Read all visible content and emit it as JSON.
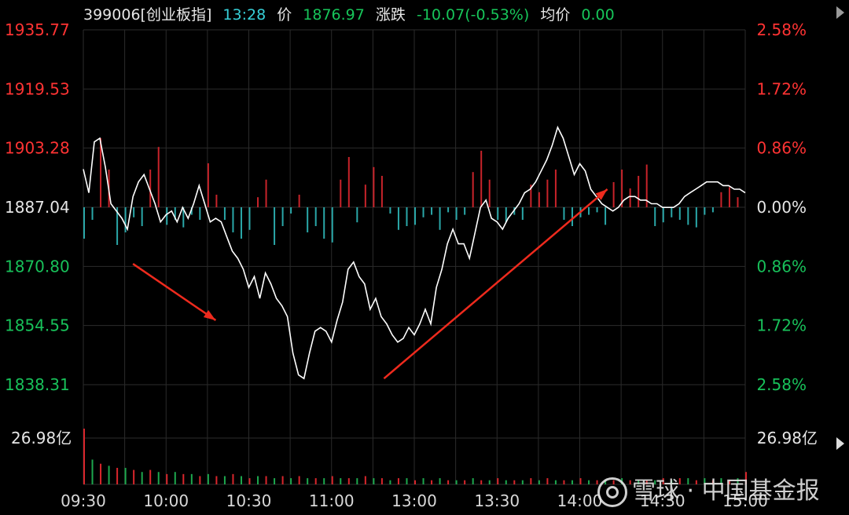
{
  "header": {
    "code_name": "399006[创业板指]",
    "time": "13:28",
    "price_label": "价",
    "price": "1876.97",
    "change_label": "涨跌",
    "change": "-10.07(-0.53%)",
    "avg_label": "均价",
    "avg": "0.00"
  },
  "watermark": {
    "text": "雪球 · 中国基金报",
    "logo_icon": "snowball-logo-icon"
  },
  "colors": {
    "up": "#ff3333",
    "down": "#18c15a",
    "ref": "#e6e6e6",
    "bar_up": "#c8232a",
    "bar_down": "#2aa7a8",
    "vol_up": "#d9262c",
    "vol_down": "#1da84e",
    "grid": "#2b2b2b",
    "arrow": "#ee2a1d",
    "price_line": "#ffffff"
  },
  "chart_data": {
    "type": "line",
    "title": "399006[创业板指]",
    "base_price": 1887.04,
    "ylim": [
      1838.31,
      1935.77
    ],
    "left_ticks": [
      "1935.77",
      "1919.53",
      "1903.28",
      "1887.04",
      "1870.80",
      "1854.55",
      "1838.31"
    ],
    "right_ticks": [
      "2.58%",
      "1.72%",
      "0.86%",
      "0.00%",
      "0.86%",
      "1.72%",
      "2.58%"
    ],
    "x_ticks": [
      "09:30",
      "10:00",
      "10:30",
      "11:00",
      "13:00",
      "13:30",
      "14:00",
      "14:30",
      "15:00"
    ],
    "volume_label_left": "26.98亿",
    "volume_label_right": "26.98亿",
    "grid": true,
    "price_series": {
      "x_minutes": [
        0,
        2,
        4,
        6,
        8,
        10,
        12,
        14,
        16,
        18,
        20,
        22,
        24,
        26,
        28,
        30,
        32,
        34,
        36,
        38,
        40,
        42,
        44,
        46,
        48,
        50,
        52,
        54,
        56,
        58,
        60,
        62,
        64,
        66,
        68,
        70,
        72,
        74,
        76,
        78,
        80,
        82,
        84,
        86,
        88,
        90,
        92,
        94,
        96,
        98,
        100,
        102,
        104,
        106,
        108,
        110,
        112,
        114,
        116,
        118,
        120,
        122,
        124,
        126,
        128,
        130,
        132,
        134,
        136,
        138,
        140,
        142,
        144,
        146,
        148,
        150,
        152,
        154,
        156,
        158,
        160,
        162,
        164,
        166,
        168,
        170,
        172,
        174,
        176,
        178,
        180,
        182,
        184,
        186,
        188,
        190,
        192,
        194,
        196,
        198,
        200,
        202,
        204,
        206,
        208,
        210,
        212,
        214,
        216,
        218,
        220,
        222,
        224,
        226,
        228,
        230,
        232,
        234,
        236,
        238,
        240
      ],
      "values": [
        1897.5,
        1891,
        1905,
        1906,
        1898,
        1888,
        1886,
        1884,
        1881,
        1890,
        1894,
        1896,
        1892,
        1888,
        1883,
        1885,
        1886,
        1883,
        1887,
        1884,
        1888,
        1893,
        1888,
        1883,
        1884,
        1883,
        1879,
        1875,
        1873,
        1870,
        1865,
        1868,
        1862,
        1869,
        1866,
        1862,
        1860,
        1857,
        1847,
        1841,
        1840,
        1847,
        1853,
        1854,
        1853,
        1850,
        1856,
        1861,
        1870,
        1872,
        1868,
        1866,
        1859,
        1862,
        1857,
        1855,
        1852,
        1850,
        1851,
        1854,
        1852,
        1855,
        1859,
        1855,
        1865,
        1870,
        1877,
        1881,
        1877,
        1877,
        1873,
        1880,
        1887,
        1889,
        1884,
        1883,
        1881,
        1884,
        1886,
        1888,
        1891,
        1892,
        1894,
        1897,
        1900,
        1904,
        1909,
        1906,
        1901,
        1896,
        1899,
        1897,
        1892,
        1890,
        1888,
        1887,
        1886,
        1887,
        1889,
        1890,
        1890,
        1889,
        1889,
        1888,
        1888,
        1887,
        1887,
        1887,
        1888,
        1890,
        1891,
        1892,
        1893,
        1894,
        1894,
        1894,
        1893,
        1893,
        1892,
        1892,
        1891
      ]
    },
    "diff_bars": {
      "x_minutes": [
        0,
        3,
        6,
        9,
        12,
        15,
        18,
        21,
        24,
        27,
        30,
        33,
        36,
        39,
        42,
        45,
        48,
        51,
        54,
        57,
        60,
        63,
        66,
        69,
        72,
        75,
        78,
        81,
        84,
        87,
        90,
        93,
        96,
        99,
        102,
        105,
        108,
        111,
        114,
        117,
        120,
        123,
        126,
        129,
        132,
        135,
        138,
        141,
        144,
        147,
        150,
        153,
        156,
        159,
        162,
        165,
        168,
        171,
        174,
        177,
        180,
        183,
        186,
        189,
        192,
        195,
        198,
        201,
        204,
        207,
        210,
        213,
        216,
        219,
        222,
        225,
        228,
        231,
        234,
        237
      ],
      "values": [
        -25,
        -10,
        55,
        30,
        -30,
        -20,
        -8,
        -15,
        30,
        48,
        -14,
        -10,
        -16,
        -6,
        -10,
        35,
        10,
        -10,
        -20,
        -25,
        -18,
        8,
        22,
        -30,
        -15,
        -5,
        10,
        -20,
        -15,
        -25,
        -28,
        22,
        40,
        -12,
        18,
        32,
        25,
        -5,
        -18,
        -15,
        -14,
        -8,
        -6,
        -18,
        -4,
        -10,
        -6,
        28,
        45,
        22,
        -10,
        -12,
        -6,
        -10,
        18,
        12,
        22,
        30,
        -10,
        -15,
        -8,
        -6,
        -4,
        -14,
        20,
        30,
        15,
        25,
        34,
        -15,
        -12,
        -8,
        -10,
        -14,
        -16,
        -6,
        -4,
        12,
        16,
        8
      ],
      "units": "relative"
    },
    "volume": {
      "note": "Relative turnover, peak = 26.98亿",
      "x_minutes": [
        0,
        3,
        6,
        9,
        12,
        15,
        18,
        21,
        24,
        27,
        30,
        33,
        36,
        39,
        42,
        45,
        48,
        51,
        54,
        57,
        60,
        63,
        66,
        69,
        72,
        75,
        78,
        81,
        84,
        87,
        90,
        93,
        96,
        99,
        102,
        105,
        108,
        111,
        114,
        117,
        120,
        123,
        126,
        129,
        132,
        135,
        138,
        141,
        144,
        147,
        150,
        153,
        156,
        159,
        162,
        165,
        168,
        171,
        174,
        177,
        180,
        183,
        186,
        189,
        192,
        195,
        198,
        201,
        204,
        207,
        210,
        213,
        216,
        219,
        222,
        225,
        228,
        231,
        234,
        237,
        240
      ],
      "values": [
        26.98,
        12,
        10,
        9,
        8,
        8,
        7,
        6,
        7,
        6,
        5,
        6,
        5,
        5,
        4,
        5,
        4,
        4,
        5,
        4,
        3,
        4,
        4,
        3,
        4,
        3,
        4,
        3,
        3,
        3,
        4,
        3,
        3,
        3,
        4,
        3,
        3,
        2,
        3,
        3,
        2,
        3,
        2,
        3,
        2,
        2,
        2,
        3,
        2,
        2,
        3,
        2,
        2,
        2,
        3,
        2,
        3,
        2,
        2,
        2,
        3,
        2,
        2,
        2,
        2,
        3,
        2,
        2,
        2,
        2,
        3,
        2,
        3,
        3,
        2,
        3,
        2,
        3,
        2,
        3,
        6
      ]
    },
    "annotations": [
      {
        "type": "arrow",
        "label": "decline",
        "from_minute": 18,
        "from_value": 1871.5,
        "to_minute": 48,
        "to_value": 1856.0
      },
      {
        "type": "arrow",
        "label": "rebound",
        "from_minute": 109,
        "from_value": 1840.0,
        "to_minute": 190,
        "to_value": 1892.0
      }
    ]
  }
}
